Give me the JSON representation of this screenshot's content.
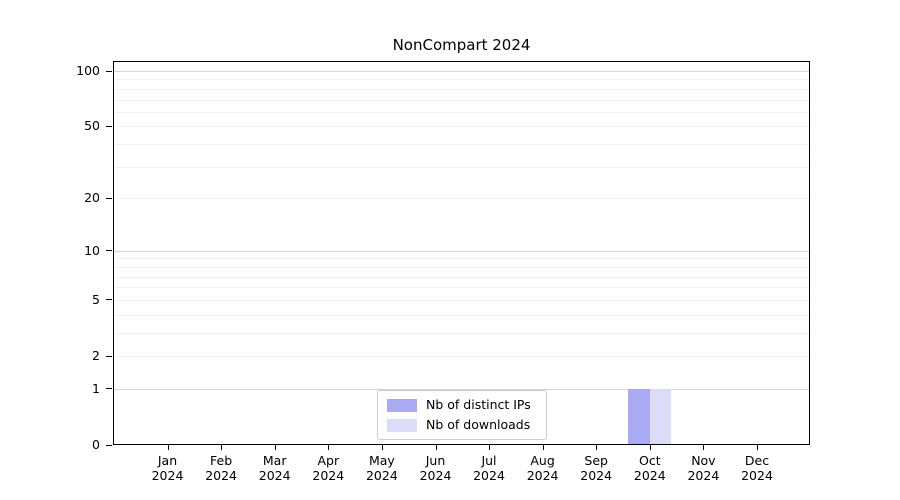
{
  "title": "NonCompart 2024",
  "chart_data": {
    "type": "bar",
    "title": "NonCompart 2024",
    "categories": [
      "Jan 2024",
      "Feb 2024",
      "Mar 2024",
      "Apr 2024",
      "May 2024",
      "Jun 2024",
      "Jul 2024",
      "Aug 2024",
      "Sep 2024",
      "Oct 2024",
      "Nov 2024",
      "Dec 2024"
    ],
    "x_month_labels": [
      "Jan",
      "Feb",
      "Mar",
      "Apr",
      "May",
      "Jun",
      "Jul",
      "Aug",
      "Sep",
      "Oct",
      "Nov",
      "Dec"
    ],
    "x_year_label": "2024",
    "series": [
      {
        "name": "Nb of distinct IPs",
        "color": "#a9a9f4",
        "values": [
          0,
          0,
          0,
          0,
          0,
          0,
          0,
          0,
          0,
          1,
          0,
          0
        ]
      },
      {
        "name": "Nb of downloads",
        "color": "#dcdcf9",
        "values": [
          0,
          0,
          0,
          0,
          0,
          0,
          0,
          0,
          0,
          1,
          0,
          0
        ]
      }
    ],
    "yscale": "log1p",
    "ylim": [
      0,
      112
    ],
    "y_ticks": [
      0,
      1,
      2,
      5,
      10,
      20,
      50,
      100
    ],
    "y_major_gridlines": [
      1,
      10,
      100
    ],
    "y_minor_gridlines": [
      2,
      3,
      4,
      5,
      6,
      7,
      8,
      9,
      20,
      30,
      40,
      50,
      60,
      70,
      80,
      90
    ],
    "grid": "horizontal",
    "legend_position": "inside-bottom-center",
    "colors": {
      "axis": "#000000",
      "grid_major": "#d4d4d4",
      "grid_minor": "#efefef",
      "legend_border": "#cccccc",
      "background": "#ffffff"
    }
  }
}
